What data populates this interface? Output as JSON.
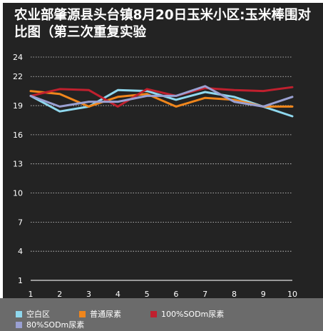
{
  "chart_data": {
    "type": "line",
    "title": "农业部肇源县头台镇8月20日玉米小区:玉米棒围对比图（第三次重复实验",
    "x": [
      1,
      2,
      3,
      4,
      5,
      6,
      7,
      8,
      9,
      10
    ],
    "y_ticks": [
      1,
      4,
      7,
      10,
      13,
      16,
      19,
      22,
      24
    ],
    "ylim": [
      1,
      24
    ],
    "grid": "horizontal-dotted",
    "legend_position": "bottom",
    "series": [
      {
        "name": "空白区",
        "color": "#8fd8ee",
        "values": [
          20.0,
          18.4,
          18.9,
          20.6,
          20.5,
          19.6,
          20.4,
          19.9,
          18.9,
          17.9
        ]
      },
      {
        "name": "普通尿素",
        "color": "#f0861c",
        "values": [
          20.5,
          20.2,
          18.9,
          19.9,
          20.2,
          18.9,
          19.8,
          19.6,
          18.9,
          18.9
        ]
      },
      {
        "name": "100%SODm尿素",
        "color": "#c0202e",
        "values": [
          20.0,
          20.7,
          20.6,
          18.9,
          20.7,
          20.0,
          20.8,
          20.6,
          20.5,
          20.9
        ]
      },
      {
        "name": "80%SODm尿素",
        "color": "#9aa0d2",
        "values": [
          20.0,
          18.9,
          19.4,
          19.4,
          20.0,
          20.0,
          21.0,
          19.4,
          18.9,
          19.9
        ]
      }
    ]
  }
}
